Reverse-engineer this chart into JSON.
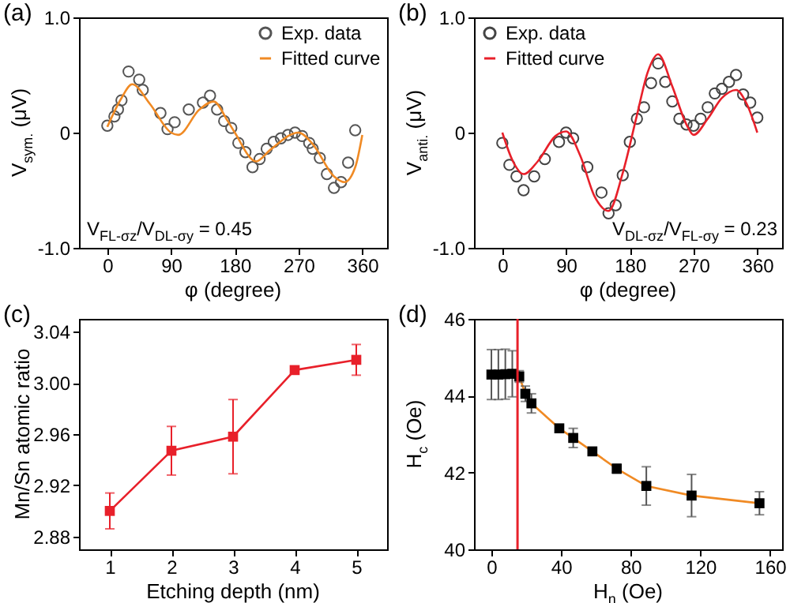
{
  "chart_data": [
    {
      "type": "scatter",
      "title": "(a)",
      "xlabel": "φ (degree)",
      "ylabel": "V$_{sym.}$ (μV)",
      "annotations": [
        "V$_{FL-σz}$/V$_{DL-σy}$ = 0.45"
      ],
      "xlim": [
        -40,
        395
      ],
      "ylim": [
        -1,
        1
      ],
      "xticks": [
        0,
        90,
        180,
        270,
        360
      ],
      "yticks": [
        {
          "value": -1,
          "label": "-1.0"
        },
        0,
        {
          "value": 1,
          "label": "1.0"
        }
      ],
      "legend": "top right",
      "series": [
        {
          "name": "Exp. data",
          "marker": "circle",
          "color": "#555555",
          "x": [
            0,
            10,
            15,
            20,
            30,
            45,
            50,
            75,
            85,
            95,
            115,
            135,
            145,
            155,
            165,
            175,
            185,
            195,
            205,
            215,
            225,
            235,
            245,
            255,
            265,
            275,
            285,
            290,
            300,
            310,
            320,
            330,
            340,
            350
          ],
          "values": [
            0.06,
            0.14,
            0.2,
            0.28,
            0.53,
            0.46,
            0.37,
            0.17,
            0.03,
            0.09,
            0.2,
            0.26,
            0.32,
            0.2,
            0.1,
            0.04,
            -0.09,
            -0.17,
            -0.3,
            -0.23,
            -0.14,
            -0.08,
            -0.05,
            -0.02,
            0.0,
            -0.03,
            -0.09,
            -0.14,
            -0.22,
            -0.36,
            -0.48,
            -0.43,
            -0.26,
            0.02
          ]
        },
        {
          "name": "Fitted curve",
          "type": "line",
          "color": "#f08a24",
          "x": [
            0,
            20,
            35,
            60,
            90,
            100,
            130,
            150,
            170,
            180,
            210,
            230,
            270,
            290,
            320,
            335,
            350,
            360
          ],
          "values": [
            0.05,
            0.3,
            0.42,
            0.25,
            0.0,
            -0.02,
            0.2,
            0.27,
            0.1,
            0.0,
            -0.25,
            -0.15,
            0.0,
            -0.1,
            -0.38,
            -0.43,
            -0.3,
            -0.02
          ]
        }
      ]
    },
    {
      "type": "scatter",
      "title": "(b)",
      "xlabel": "φ (degree)",
      "ylabel": "V$_{anti.}$ (μV)",
      "annotations": [
        "V$_{DL-σz}$/V$_{FL-σy}$ = 0.23"
      ],
      "xlim": [
        -40,
        395
      ],
      "ylim": [
        -1,
        1
      ],
      "xticks": [
        0,
        90,
        180,
        270,
        360
      ],
      "yticks": [
        {
          "value": -1,
          "label": "-1.0"
        },
        0,
        {
          "value": 1,
          "label": "1.0"
        }
      ],
      "legend": "top left",
      "series": [
        {
          "name": "Exp. data",
          "marker": "circle",
          "color": "#444444",
          "x": [
            0,
            10,
            20,
            30,
            45,
            60,
            80,
            90,
            100,
            120,
            140,
            150,
            160,
            170,
            180,
            190,
            200,
            210,
            220,
            230,
            240,
            250,
            260,
            270,
            280,
            290,
            300,
            310,
            320,
            330,
            340,
            350,
            360
          ],
          "values": [
            -0.09,
            -0.28,
            -0.38,
            -0.5,
            -0.38,
            -0.23,
            -0.08,
            0.0,
            -0.05,
            -0.3,
            -0.52,
            -0.7,
            -0.63,
            -0.37,
            -0.08,
            0.12,
            0.22,
            0.43,
            0.6,
            0.44,
            0.27,
            0.12,
            0.07,
            0.06,
            0.12,
            0.22,
            0.34,
            0.38,
            0.44,
            0.5,
            0.33,
            0.26,
            0.13
          ]
        },
        {
          "name": "Fitted curve",
          "type": "line",
          "color": "#e8202a",
          "x": [
            0,
            15,
            30,
            50,
            75,
            90,
            110,
            130,
            150,
            170,
            190,
            205,
            220,
            240,
            260,
            270,
            290,
            310,
            330,
            345,
            360
          ],
          "values": [
            0.0,
            -0.25,
            -0.36,
            -0.25,
            -0.03,
            0.01,
            -0.2,
            -0.55,
            -0.68,
            -0.35,
            0.15,
            0.52,
            0.68,
            0.4,
            0.07,
            -0.02,
            0.12,
            0.3,
            0.37,
            0.25,
            0.0
          ]
        }
      ]
    },
    {
      "type": "line",
      "title": "(c)",
      "xlabel": "Etching depth (nm)",
      "ylabel": "Mn/Sn atomic ratio",
      "xlim": [
        0.5,
        5.5
      ],
      "ylim": [
        2.87,
        3.05
      ],
      "xticks": [
        1,
        2,
        3,
        4,
        5
      ],
      "yticks": [
        2.88,
        2.92,
        2.96,
        {
          "value": 3,
          "label": "3.00"
        },
        3.04
      ],
      "marker": "square",
      "series": [
        {
          "color": "#e8202a",
          "x": [
            1,
            2,
            3,
            4,
            5
          ],
          "values": [
            2.9,
            2.947,
            2.958,
            3.01,
            3.018
          ],
          "errors": [
            0.014,
            0.019,
            0.029,
            null,
            0.012
          ]
        }
      ]
    },
    {
      "type": "scatter",
      "title": "(d)",
      "xlabel": "H$_{n}$ (Oe)",
      "ylabel": "H$_{c}$ (Oe)",
      "xlim": [
        -10,
        167
      ],
      "ylim": [
        40,
        46
      ],
      "xticks": [
        0,
        40,
        80,
        120,
        160
      ],
      "yticks": [
        40,
        42,
        44,
        46
      ],
      "ref_lines": [
        {
          "axis": "x",
          "value": 15,
          "color": "#e8202a"
        }
      ],
      "series": [
        {
          "type": "line",
          "color": "#f08a24",
          "x": [
            16,
            19.5,
            23,
            39,
            47,
            58,
            72,
            89,
            115,
            154
          ],
          "values": [
            44.5,
            44.05,
            43.8,
            43.15,
            42.9,
            42.55,
            42.1,
            41.65,
            41.4,
            41.2
          ]
        },
        {
          "marker": "square",
          "color": "#000000",
          "x": [
            0,
            4,
            8,
            12,
            16,
            19.5,
            23,
            39,
            47,
            58,
            72,
            89,
            115,
            154
          ],
          "values": [
            44.55,
            44.55,
            44.56,
            44.57,
            44.5,
            44.05,
            43.8,
            43.15,
            42.9,
            42.55,
            42.1,
            41.65,
            41.4,
            41.2
          ],
          "errors": [
            0.65,
            0.65,
            0.65,
            0.6,
            0.15,
            0.2,
            0.25,
            null,
            0.25,
            null,
            0.12,
            0.5,
            0.55,
            0.3
          ]
        }
      ]
    }
  ]
}
